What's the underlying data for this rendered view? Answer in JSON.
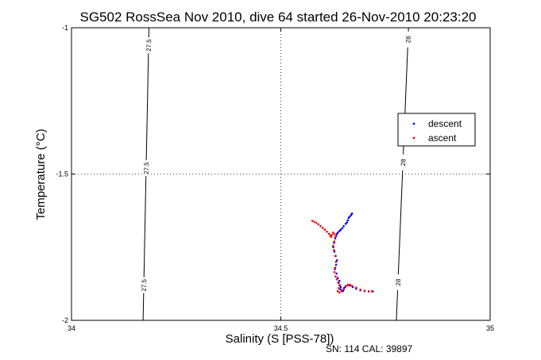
{
  "chart_data": {
    "type": "scatter",
    "title": "SG502 RossSea Nov 2010, dive 64 started 26-Nov-2010 20:23:20",
    "xlabel": "Salinity (S [PSS-78])",
    "ylabel": "Temperature (°C)",
    "xlim": [
      34,
      35
    ],
    "ylim": [
      -2,
      -1
    ],
    "x_ticks": [
      "34",
      "34.5",
      "35"
    ],
    "y_ticks": [
      "-1",
      "-1.5",
      "-2"
    ],
    "grid": true,
    "grid_style": "dotted",
    "legend_position": "upper-right",
    "density_contours": [
      {
        "label": "27.5",
        "points": [
          [
            34.171,
            -2.0
          ],
          [
            34.185,
            -1.0
          ]
        ],
        "label_at_y": [
          -1.06,
          -1.48,
          -1.88
        ]
      },
      {
        "label": "28",
        "points": [
          [
            34.776,
            -2.0
          ],
          [
            34.805,
            -1.0
          ]
        ],
        "label_at_y": [
          -1.04,
          -1.46,
          -1.87
        ]
      }
    ],
    "series": [
      {
        "name": "descent",
        "color": "#0000ff",
        "x": [
          34.67,
          34.668,
          34.665,
          34.662,
          34.66,
          34.658,
          34.655,
          34.65,
          34.647,
          34.643,
          34.64,
          34.636,
          34.634,
          34.632,
          34.63,
          34.627,
          34.625,
          34.628,
          34.631,
          34.634,
          34.632,
          34.629,
          34.633,
          34.636,
          34.64,
          34.638,
          34.641,
          34.643,
          34.642,
          34.645,
          34.648,
          34.65,
          34.652,
          34.655,
          34.66,
          34.665,
          34.672,
          34.68,
          34.69,
          34.7,
          34.71,
          34.718
        ],
        "y": [
          -1.635,
          -1.64,
          -1.645,
          -1.65,
          -1.658,
          -1.665,
          -1.67,
          -1.678,
          -1.685,
          -1.69,
          -1.695,
          -1.7,
          -1.705,
          -1.712,
          -1.72,
          -1.735,
          -1.75,
          -1.765,
          -1.78,
          -1.795,
          -1.81,
          -1.825,
          -1.84,
          -1.855,
          -1.865,
          -1.872,
          -1.88,
          -1.886,
          -1.893,
          -1.898,
          -1.9,
          -1.895,
          -1.888,
          -1.883,
          -1.879,
          -1.881,
          -1.886,
          -1.892,
          -1.897,
          -1.9,
          -1.901,
          -1.901
        ]
      },
      {
        "name": "ascent",
        "color": "#ff0000",
        "x": [
          34.575,
          34.58,
          34.585,
          34.59,
          34.595,
          34.6,
          34.605,
          34.61,
          34.615,
          34.618,
          34.62,
          34.622,
          34.625,
          34.628,
          34.63,
          34.628,
          34.625,
          34.627,
          34.63,
          34.632,
          34.63,
          34.628,
          34.631,
          34.634,
          34.637,
          34.64,
          34.638,
          34.636,
          34.64,
          34.645,
          34.65,
          34.655,
          34.66,
          34.665,
          34.67,
          34.68,
          34.69,
          34.7,
          34.71,
          34.72
        ],
        "y": [
          -1.66,
          -1.663,
          -1.667,
          -1.672,
          -1.678,
          -1.684,
          -1.69,
          -1.697,
          -1.704,
          -1.71,
          -1.715,
          -1.708,
          -1.7,
          -1.705,
          -1.715,
          -1.73,
          -1.745,
          -1.76,
          -1.78,
          -1.8,
          -1.82,
          -1.835,
          -1.85,
          -1.86,
          -1.87,
          -1.88,
          -1.89,
          -1.9,
          -1.905,
          -1.9,
          -1.893,
          -1.885,
          -1.88,
          -1.878,
          -1.882,
          -1.888,
          -1.895,
          -1.899,
          -1.901,
          -1.901
        ]
      }
    ]
  },
  "footer": "SN: 114  CAL: 39897"
}
